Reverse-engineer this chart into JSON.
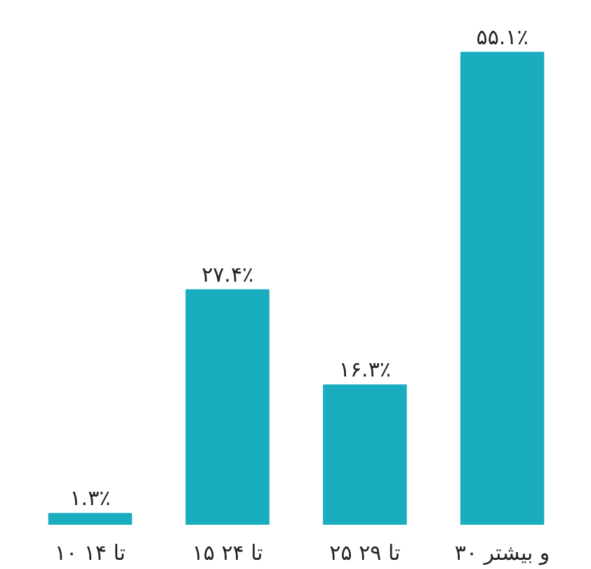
{
  "chart_data": {
    "type": "bar",
    "categories": [
      "۱۰ تا ۱۴",
      "۱۵ تا ۲۴",
      "۲۵ تا ۲۹",
      "۳۰ و بیشتر"
    ],
    "values": [
      1.3,
      27.4,
      16.3,
      55.1
    ],
    "value_labels": [
      "۱.۳٪",
      "۲۷.۴٪",
      "۱۶.۳٪",
      "۵۵.۱٪"
    ],
    "color": "#1aacbf",
    "grid": false
  }
}
